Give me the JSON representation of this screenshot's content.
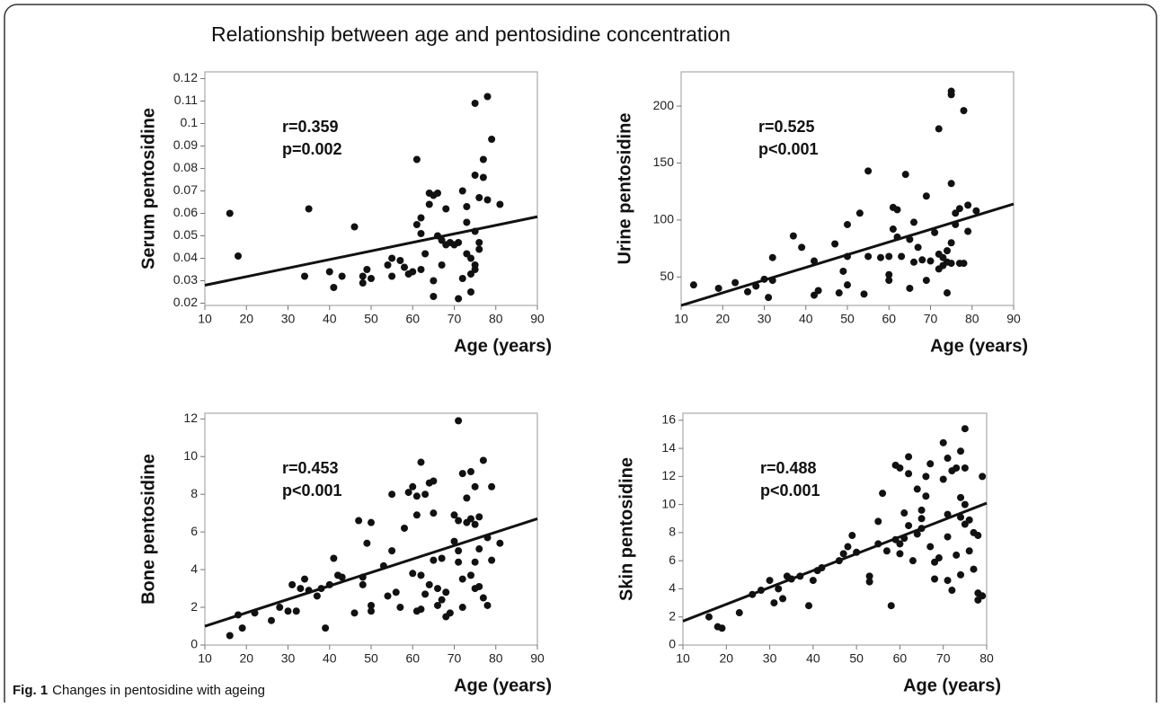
{
  "title": "Relationship between age and pentosidine concentration",
  "caption": {
    "label": "Fig. 1",
    "text": "Changes in pentosidine with ageing"
  },
  "chart_data": [
    {
      "type": "scatter",
      "ylabel": "Serum pentosidine",
      "xlabel": "Age (years)",
      "annotations": [
        "r=0.359",
        "p=0.002"
      ],
      "color": "#111111",
      "xlim": [
        10,
        90
      ],
      "ylim": [
        0.019,
        0.123
      ],
      "xticks": [
        10,
        20,
        30,
        40,
        50,
        60,
        70,
        80,
        90
      ],
      "yticks": [
        0.02,
        0.03,
        0.04,
        0.05,
        0.06,
        0.07,
        0.08,
        0.09,
        0.1,
        0.11,
        0.12
      ],
      "x": [
        16,
        18,
        34,
        35,
        40,
        41,
        43,
        46,
        48,
        48,
        49,
        50,
        54,
        55,
        55,
        57,
        58,
        59,
        60,
        61,
        61,
        62,
        62,
        62,
        63,
        64,
        64,
        65,
        65,
        65,
        66,
        66,
        67,
        67,
        68,
        68,
        69,
        70,
        71,
        71,
        72,
        72,
        73,
        73,
        73,
        74,
        74,
        74,
        75,
        75,
        75,
        75,
        75,
        76,
        76,
        76,
        77,
        77,
        78,
        78,
        79,
        81
      ],
      "y": [
        0.06,
        0.041,
        0.032,
        0.062,
        0.034,
        0.027,
        0.032,
        0.054,
        0.029,
        0.032,
        0.035,
        0.031,
        0.037,
        0.032,
        0.04,
        0.039,
        0.036,
        0.033,
        0.034,
        0.084,
        0.055,
        0.058,
        0.051,
        0.035,
        0.042,
        0.064,
        0.069,
        0.068,
        0.03,
        0.023,
        0.069,
        0.05,
        0.048,
        0.037,
        0.062,
        0.046,
        0.047,
        0.046,
        0.022,
        0.047,
        0.031,
        0.07,
        0.056,
        0.042,
        0.063,
        0.04,
        0.025,
        0.033,
        0.109,
        0.077,
        0.052,
        0.037,
        0.035,
        0.047,
        0.044,
        0.067,
        0.084,
        0.076,
        0.112,
        0.066,
        0.093,
        0.064
      ],
      "fit_line": {
        "x": [
          10,
          90
        ],
        "y": [
          0.028,
          0.0585
        ]
      }
    },
    {
      "type": "scatter",
      "ylabel": "Urine pentosidine",
      "xlabel": "Age (years)",
      "annotations": [
        "r=0.525",
        "p<0.001"
      ],
      "color": "#111111",
      "xlim": [
        10,
        90
      ],
      "ylim": [
        25,
        230
      ],
      "xticks": [
        10,
        20,
        30,
        40,
        50,
        60,
        70,
        80,
        90
      ],
      "yticks": [
        50,
        100,
        150,
        200
      ],
      "x": [
        13,
        19,
        23,
        26,
        28,
        30,
        31,
        32,
        32,
        37,
        39,
        42,
        42,
        43,
        47,
        48,
        49,
        50,
        50,
        50,
        53,
        54,
        55,
        55,
        58,
        60,
        60,
        60,
        61,
        61,
        62,
        62,
        63,
        64,
        65,
        65,
        66,
        66,
        67,
        68,
        69,
        69,
        70,
        71,
        72,
        72,
        72,
        73,
        73,
        74,
        74,
        74,
        75,
        75,
        75,
        75,
        75,
        76,
        76,
        77,
        77,
        78,
        78,
        79,
        79,
        81
      ],
      "y": [
        43,
        40,
        45,
        37,
        42,
        48,
        32,
        67,
        47,
        86,
        76,
        64,
        34,
        38,
        79,
        36,
        55,
        96,
        68,
        43,
        106,
        35,
        68,
        143,
        67,
        68,
        52,
        47,
        111,
        92,
        109,
        85,
        68,
        140,
        83,
        40,
        98,
        63,
        76,
        65,
        121,
        47,
        64,
        89,
        180,
        70,
        57,
        67,
        60,
        36,
        63,
        73,
        213,
        210,
        132,
        80,
        62,
        106,
        96,
        110,
        62,
        196,
        62,
        113,
        90,
        108
      ],
      "fit_line": {
        "x": [
          10,
          90
        ],
        "y": [
          25,
          114
        ]
      }
    },
    {
      "type": "scatter",
      "ylabel": "Bone pentosidine",
      "xlabel": "Age (years)",
      "annotations": [
        "r=0.453",
        "p<0.001"
      ],
      "color": "#111111",
      "xlim": [
        10,
        90
      ],
      "ylim": [
        0,
        12.3
      ],
      "xticks": [
        10,
        20,
        30,
        40,
        50,
        60,
        70,
        80,
        90
      ],
      "yticks": [
        0,
        2,
        4,
        6,
        8,
        10,
        12
      ],
      "x": [
        16,
        18,
        19,
        22,
        26,
        28,
        30,
        31,
        32,
        33,
        34,
        35,
        37,
        38,
        39,
        40,
        41,
        42,
        43,
        46,
        47,
        48,
        48,
        49,
        50,
        50,
        50,
        53,
        54,
        55,
        55,
        56,
        57,
        58,
        59,
        60,
        60,
        61,
        61,
        61,
        62,
        62,
        62,
        63,
        63,
        64,
        64,
        65,
        65,
        65,
        66,
        66,
        67,
        67,
        68,
        68,
        69,
        70,
        70,
        71,
        71,
        71,
        71,
        72,
        72,
        72,
        73,
        73,
        74,
        74,
        74,
        75,
        75,
        75,
        75,
        76,
        76,
        76,
        77,
        77,
        78,
        78,
        79,
        79,
        81
      ],
      "y": [
        0.5,
        1.6,
        0.9,
        1.7,
        1.3,
        2.0,
        1.8,
        3.2,
        1.8,
        3.0,
        3.5,
        2.9,
        2.6,
        3.0,
        0.9,
        3.2,
        4.6,
        3.7,
        3.6,
        1.7,
        6.6,
        3.6,
        3.2,
        5.4,
        6.5,
        2.1,
        1.8,
        4.2,
        2.6,
        5.0,
        8.0,
        2.8,
        2.0,
        6.2,
        8.1,
        8.4,
        3.8,
        7.9,
        6.9,
        1.8,
        9.7,
        3.7,
        1.9,
        8.0,
        2.7,
        8.6,
        3.2,
        8.7,
        7.0,
        4.5,
        3.0,
        2.1,
        4.6,
        2.4,
        2.8,
        1.5,
        1.7,
        6.9,
        5.5,
        11.9,
        6.6,
        5.0,
        4.4,
        9.1,
        3.5,
        2.0,
        7.8,
        6.5,
        9.2,
        6.7,
        3.7,
        8.4,
        6.4,
        4.4,
        3.0,
        6.8,
        5.1,
        3.1,
        9.8,
        2.5,
        5.7,
        2.1,
        8.4,
        4.5,
        5.4
      ],
      "fit_line": {
        "x": [
          10,
          90
        ],
        "y": [
          1.0,
          6.7
        ]
      }
    },
    {
      "type": "scatter",
      "ylabel": "Skin pentosidine",
      "xlabel": "Age (years)",
      "annotations": [
        "r=0.488",
        "p<0.001"
      ],
      "color": "#111111",
      "xlim": [
        10,
        80
      ],
      "ylim": [
        0,
        16.5
      ],
      "xticks": [
        10,
        20,
        30,
        40,
        50,
        60,
        70,
        80
      ],
      "yticks": [
        0,
        2,
        4,
        6,
        8,
        10,
        12,
        14,
        16
      ],
      "x": [
        16,
        18,
        19,
        23,
        26,
        28,
        30,
        31,
        32,
        33,
        34,
        35,
        37,
        39,
        40,
        41,
        42,
        46,
        47,
        48,
        49,
        50,
        53,
        53,
        55,
        55,
        56,
        57,
        58,
        59,
        59,
        60,
        60,
        60,
        61,
        61,
        62,
        62,
        62,
        63,
        64,
        64,
        65,
        65,
        65,
        66,
        66,
        67,
        67,
        68,
        68,
        69,
        70,
        70,
        71,
        71,
        71,
        71,
        72,
        72,
        73,
        73,
        74,
        74,
        74,
        74,
        75,
        75,
        75,
        75,
        76,
        76,
        77,
        77,
        78,
        78,
        78,
        79,
        79
      ],
      "y": [
        2.0,
        1.3,
        1.2,
        2.3,
        3.6,
        3.9,
        4.6,
        3.0,
        4.0,
        3.3,
        4.9,
        4.7,
        4.9,
        2.8,
        4.6,
        5.3,
        5.5,
        6.0,
        6.5,
        7.0,
        7.8,
        6.6,
        4.9,
        4.5,
        7.2,
        8.8,
        10.8,
        6.7,
        2.8,
        12.8,
        7.5,
        12.6,
        7.2,
        6.5,
        9.4,
        7.6,
        13.4,
        12.2,
        8.5,
        6.0,
        11.1,
        7.9,
        9.6,
        9.0,
        8.3,
        10.6,
        12.0,
        12.9,
        7.0,
        5.9,
        4.7,
        6.2,
        11.8,
        14.4,
        13.3,
        9.3,
        7.7,
        4.6,
        12.4,
        3.9,
        12.6,
        6.4,
        13.8,
        10.5,
        9.1,
        5.0,
        15.4,
        12.6,
        10.0,
        8.6,
        8.9,
        6.7,
        8.0,
        5.4,
        7.8,
        3.7,
        3.2,
        12.0,
        3.5
      ],
      "fit_line": {
        "x": [
          10,
          80
        ],
        "y": [
          1.7,
          10.1
        ]
      }
    }
  ]
}
